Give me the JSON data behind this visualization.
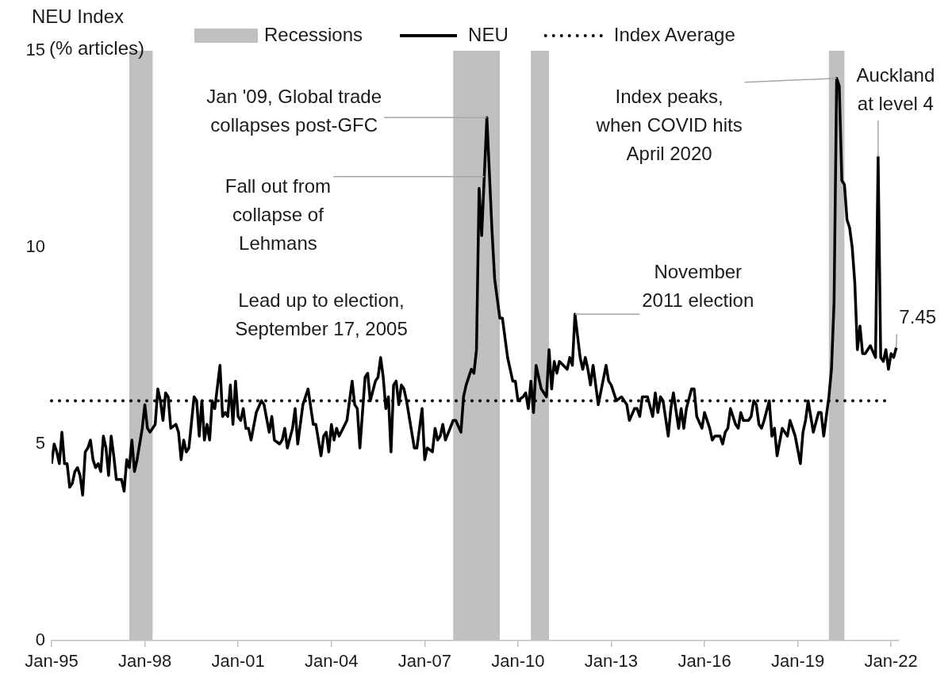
{
  "chart_data": {
    "type": "line",
    "ylabel": "NEU Index (% articles)",
    "legend": "top",
    "ylim": [
      0,
      15
    ],
    "yticks": [
      0,
      5,
      10,
      15
    ],
    "xlim": [
      "1995-01",
      "2022-04"
    ],
    "xticks": [
      {
        "value": "1995-01",
        "label": "Jan-95"
      },
      {
        "value": "1998-01",
        "label": "Jan-98"
      },
      {
        "value": "2001-01",
        "label": "Jan-01"
      },
      {
        "value": "2004-01",
        "label": "Jan-04"
      },
      {
        "value": "2007-01",
        "label": "Jan-07"
      },
      {
        "value": "2010-01",
        "label": "Jan-10"
      },
      {
        "value": "2013-01",
        "label": "Jan-13"
      },
      {
        "value": "2016-01",
        "label": "Jan-16"
      },
      {
        "value": "2019-01",
        "label": "Jan-19"
      },
      {
        "value": "2022-01",
        "label": "Jan-22"
      }
    ],
    "grid": false,
    "line_style": "solid",
    "series": [
      {
        "name": "NEU",
        "color": "#000000",
        "x": [
          "1995-01",
          "1995-02",
          "1995-03",
          "1995-04",
          "1995-05",
          "1995-06",
          "1995-07",
          "1995-08",
          "1995-09",
          "1995-10",
          "1995-11",
          "1995-12",
          "1996-01",
          "1996-02",
          "1996-03",
          "1996-04",
          "1996-05",
          "1996-06",
          "1996-07",
          "1996-08",
          "1996-09",
          "1996-10",
          "1996-11",
          "1996-12",
          "1997-01",
          "1997-02",
          "1997-04",
          "1997-05",
          "1997-06",
          "1997-07",
          "1997-08",
          "1997-09",
          "1997-10",
          "1997-12",
          "1998-01",
          "1998-02",
          "1998-03",
          "1998-05",
          "1998-06",
          "1998-07",
          "1998-08",
          "1998-09",
          "1998-10",
          "1998-11",
          "1999-01",
          "1999-02",
          "1999-03",
          "1999-04",
          "1999-05",
          "1999-06",
          "1999-08",
          "1999-09",
          "1999-10",
          "1999-11",
          "1999-12",
          "2000-01",
          "2000-02",
          "2000-03",
          "2000-04",
          "2000-06",
          "2000-07",
          "2000-08",
          "2000-09",
          "2000-10",
          "2000-11",
          "2000-12",
          "2001-01",
          "2001-02",
          "2001-03",
          "2001-04",
          "2001-05",
          "2001-06",
          "2001-08",
          "2001-10",
          "2001-11",
          "2002-01",
          "2002-02",
          "2002-03",
          "2002-05",
          "2002-06",
          "2002-07",
          "2002-08",
          "2002-10",
          "2002-11",
          "2002-12",
          "2003-02",
          "2003-04",
          "2003-06",
          "2003-07",
          "2003-09",
          "2003-10",
          "2003-11",
          "2003-12",
          "2004-01",
          "2004-02",
          "2004-03",
          "2004-04",
          "2004-07",
          "2004-09",
          "2004-10",
          "2004-11",
          "2004-12",
          "2005-02",
          "2005-03",
          "2005-04",
          "2005-06",
          "2005-07",
          "2005-08",
          "2005-09",
          "2005-10",
          "2005-11",
          "2005-12",
          "2006-01",
          "2006-02",
          "2006-03",
          "2006-04",
          "2006-05",
          "2006-06",
          "2006-09",
          "2006-10",
          "2006-12",
          "2007-01",
          "2007-02",
          "2007-04",
          "2007-05",
          "2007-06",
          "2007-07",
          "2007-08",
          "2007-09",
          "2007-12",
          "2008-01",
          "2008-03",
          "2008-04",
          "2008-05",
          "2008-07",
          "2008-08",
          "2008-09",
          "2008-10",
          "2008-11",
          "2008-12",
          "2009-01",
          "2009-03",
          "2009-04",
          "2009-06",
          "2009-07",
          "2009-09",
          "2009-11",
          "2009-12",
          "2010-01",
          "2010-03",
          "2010-04",
          "2010-05",
          "2010-06",
          "2010-07",
          "2010-08",
          "2010-10",
          "2010-12",
          "2011-01",
          "2011-02",
          "2011-03",
          "2011-04",
          "2011-05",
          "2011-08",
          "2011-09",
          "2011-10",
          "2011-11",
          "2012-01",
          "2012-02",
          "2012-03",
          "2012-04",
          "2012-05",
          "2012-06",
          "2012-08",
          "2012-11",
          "2012-12",
          "2013-01",
          "2013-03",
          "2013-05",
          "2013-07",
          "2013-08",
          "2013-10",
          "2013-11",
          "2013-12",
          "2014-01",
          "2014-03",
          "2014-05",
          "2014-06",
          "2014-07",
          "2014-08",
          "2014-09",
          "2014-11",
          "2014-12",
          "2015-01",
          "2015-03",
          "2015-04",
          "2015-05",
          "2015-06",
          "2015-08",
          "2015-09",
          "2015-10",
          "2015-12",
          "2016-01",
          "2016-03",
          "2016-04",
          "2016-05",
          "2016-07",
          "2016-08",
          "2016-09",
          "2016-10",
          "2016-11",
          "2017-01",
          "2017-02",
          "2017-03",
          "2017-04",
          "2017-06",
          "2017-07",
          "2017-08",
          "2017-09",
          "2017-10",
          "2017-11",
          "2017-12",
          "2018-02",
          "2018-03",
          "2018-04",
          "2018-05",
          "2018-07",
          "2018-08",
          "2018-09",
          "2018-10",
          "2018-11",
          "2018-12",
          "2019-02",
          "2019-03",
          "2019-04",
          "2019-05",
          "2019-07",
          "2019-09",
          "2019-10",
          "2019-11",
          "2019-12",
          "2020-01",
          "2020-02",
          "2020-03",
          "2020-04",
          "2020-05",
          "2020-06",
          "2020-07",
          "2020-08",
          "2020-09",
          "2020-10",
          "2020-11",
          "2020-12",
          "2021-01",
          "2021-02",
          "2021-03",
          "2021-04",
          "2021-05",
          "2021-07",
          "2021-08",
          "2021-09",
          "2021-10",
          "2021-11",
          "2021-12",
          "2022-01",
          "2022-02",
          "2022-03"
        ],
        "values": [
          4.5,
          5.0,
          4.8,
          4.5,
          5.3,
          4.5,
          4.5,
          3.9,
          4.0,
          4.3,
          4.4,
          4.2,
          3.7,
          4.8,
          4.9,
          5.1,
          4.6,
          4.4,
          4.5,
          4.3,
          5.2,
          4.9,
          4.2,
          5.2,
          4.7,
          4.1,
          4.1,
          3.8,
          4.6,
          4.4,
          5.1,
          4.3,
          4.6,
          5.4,
          6.0,
          5.4,
          5.3,
          5.5,
          6.4,
          6.1,
          5.6,
          6.3,
          6.2,
          5.4,
          5.5,
          5.3,
          4.6,
          5.1,
          4.8,
          4.9,
          6.2,
          6.1,
          5.2,
          6.1,
          5.1,
          5.5,
          5.1,
          6.1,
          5.9,
          7.0,
          5.7,
          5.8,
          5.7,
          6.5,
          5.5,
          6.6,
          5.7,
          5.6,
          5.9,
          5.4,
          5.4,
          5.1,
          5.8,
          6.1,
          6.0,
          5.3,
          5.7,
          5.1,
          5.0,
          5.1,
          5.4,
          4.9,
          5.4,
          5.9,
          5.0,
          6.0,
          6.4,
          5.5,
          5.5,
          4.7,
          5.2,
          5.3,
          4.8,
          5.5,
          5.1,
          5.4,
          5.2,
          5.6,
          6.6,
          6.0,
          5.9,
          4.9,
          6.7,
          6.8,
          6.1,
          6.6,
          6.7,
          7.2,
          6.7,
          5.9,
          6.2,
          4.8,
          6.5,
          6.6,
          6.0,
          6.5,
          6.4,
          6.1,
          4.9,
          4.9,
          5.9,
          4.6,
          4.9,
          4.8,
          5.4,
          5.1,
          5.2,
          5.5,
          5.1,
          5.6,
          5.6,
          5.3,
          6.2,
          6.5,
          6.9,
          6.8,
          7.4,
          11.5,
          10.3,
          11.8,
          13.3,
          10.4,
          9.2,
          8.2,
          8.2,
          7.2,
          6.6,
          6.6,
          6.1,
          6.2,
          6.3,
          5.9,
          6.6,
          5.8,
          7.0,
          6.4,
          6.2,
          7.4,
          6.4,
          7.1,
          6.8,
          7.1,
          6.9,
          7.2,
          7.0,
          8.3,
          7.2,
          6.9,
          7.2,
          6.9,
          6.5,
          7.0,
          6.0,
          7.0,
          6.6,
          6.5,
          6.1,
          6.2,
          6.0,
          5.6,
          5.9,
          5.9,
          5.7,
          6.2,
          6.2,
          5.7,
          6.3,
          5.8,
          6.2,
          6.1,
          5.2,
          5.9,
          6.3,
          5.4,
          5.9,
          5.4,
          5.9,
          6.4,
          6.4,
          5.7,
          5.4,
          5.8,
          5.4,
          5.1,
          5.2,
          5.2,
          5.0,
          5.3,
          5.4,
          5.9,
          5.5,
          5.4,
          5.8,
          5.6,
          5.6,
          5.7,
          6.1,
          6.0,
          5.5,
          5.4,
          5.6,
          6.1,
          5.2,
          5.4,
          4.7,
          5.4,
          5.3,
          5.2,
          5.6,
          5.4,
          5.2,
          4.5,
          5.3,
          5.6,
          6.1,
          5.3,
          5.8,
          5.8,
          5.2,
          5.7,
          6.2,
          6.9,
          8.6,
          14.3,
          14.1,
          11.7,
          11.6,
          10.7,
          10.5,
          10.0,
          9.1,
          7.4,
          8.0,
          7.3,
          7.3,
          7.4,
          7.5,
          7.2,
          12.3,
          7.2,
          7.1,
          7.4,
          6.9,
          7.3,
          7.2,
          7.45
        ]
      }
    ],
    "ref_lines": [
      {
        "axis": "y",
        "value": 6.1,
        "label": "Index Average",
        "color": "#000000",
        "line_style": "dotted"
      }
    ],
    "bands": [
      {
        "axis": "x",
        "from": "1997-07",
        "to": "1998-04",
        "label": "Recessions",
        "color": "#c0c0c0"
      },
      {
        "axis": "x",
        "from": "2007-12",
        "to": "2009-06",
        "color": "#c0c0c0"
      },
      {
        "axis": "x",
        "from": "2010-06",
        "to": "2011-01",
        "color": "#c0c0c0"
      },
      {
        "axis": "x",
        "from": "2020-01",
        "to": "2020-07",
        "color": "#c0c0c0"
      }
    ],
    "annotations": [
      {
        "text": "Jan '09, Global trade collapses post-GFC",
        "x": "2009-01",
        "y": 13.3
      },
      {
        "text": "Fall out from collapse of Lehmans",
        "x": "2008-12",
        "y": 11.8
      },
      "Lead up to election, September 17, 2005",
      {
        "text": "November 2011 election",
        "x": "2011-11",
        "y": 8.3
      },
      {
        "text": "Index peaks, when COVID hits April 2020",
        "x": "2020-04",
        "y": 14.3
      },
      {
        "text": "Auckland at level 4",
        "x": "2021-08",
        "y": 12.3
      },
      {
        "text": "7.45",
        "x": "2022-03",
        "y": 7.45
      }
    ]
  }
}
